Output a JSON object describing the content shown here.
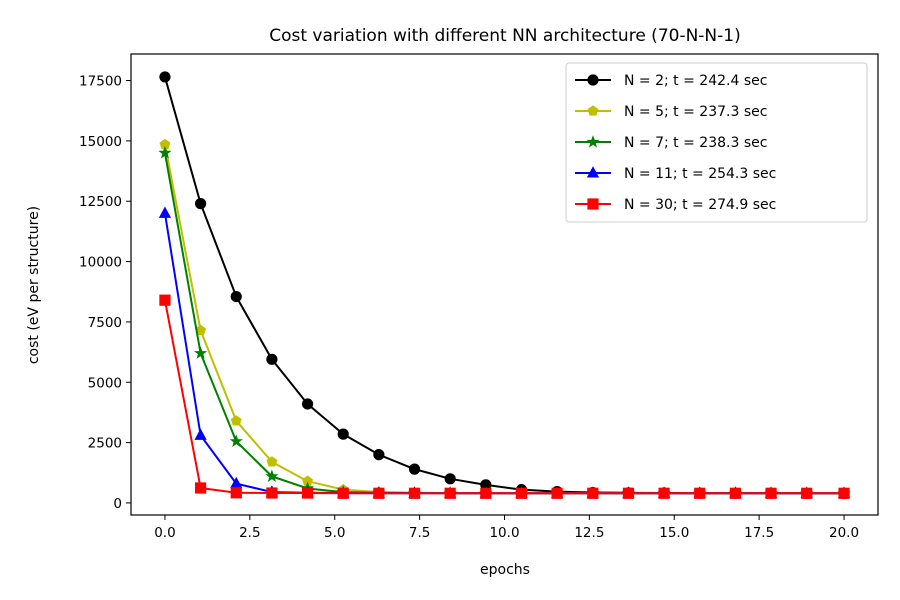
{
  "chart_data": {
    "type": "line",
    "title": "Cost variation with different NN architecture (70-N-N-1)",
    "xlabel": "epochs",
    "ylabel": "cost (eV per structure)",
    "xlim": [
      -1.0,
      21.0
    ],
    "ylim": [
      -500,
      18600
    ],
    "xticks": [
      0.0,
      2.5,
      5.0,
      7.5,
      10.0,
      12.5,
      15.0,
      17.5,
      20.0
    ],
    "xtick_labels": [
      "0.0",
      "2.5",
      "5.0",
      "7.5",
      "10.0",
      "12.5",
      "15.0",
      "17.5",
      "20.0"
    ],
    "yticks": [
      0,
      2500,
      5000,
      7500,
      10000,
      12500,
      15000,
      17500
    ],
    "ytick_labels": [
      "0",
      "2500",
      "5000",
      "7500",
      "10000",
      "12500",
      "15000",
      "17500"
    ],
    "grid": false,
    "legend_position": "top-right",
    "x": [
      0.0,
      1.05,
      2.1,
      3.15,
      4.2,
      5.25,
      6.3,
      7.35,
      8.4,
      9.45,
      10.5,
      11.55,
      12.6,
      13.65,
      14.7,
      15.75,
      16.8,
      17.85,
      18.9,
      20.0
    ],
    "series": [
      {
        "name": "N = 2; t = 242.4 sec",
        "color": "#000000",
        "marker": "circle",
        "values": [
          17650,
          12400,
          8550,
          5950,
          4100,
          2850,
          2000,
          1400,
          1000,
          750,
          550,
          470,
          430,
          420,
          410,
          400,
          400,
          400,
          390,
          390
        ]
      },
      {
        "name": "N = 5; t = 237.3 sec",
        "color": "#bfbf00",
        "marker": "pentagon",
        "values": [
          14850,
          7150,
          3400,
          1700,
          900,
          550,
          450,
          420,
          410,
          400,
          400,
          400,
          400,
          400,
          400,
          400,
          400,
          400,
          400,
          400
        ]
      },
      {
        "name": "N = 7; t = 238.3 sec",
        "color": "#008000",
        "marker": "star",
        "values": [
          14500,
          6200,
          2550,
          1100,
          600,
          450,
          420,
          410,
          400,
          400,
          400,
          400,
          400,
          400,
          400,
          400,
          400,
          400,
          400,
          400
        ]
      },
      {
        "name": "N = 11; t = 254.3 sec",
        "color": "#0000ff",
        "marker": "triangle",
        "values": [
          12000,
          2800,
          800,
          450,
          420,
          410,
          400,
          400,
          400,
          400,
          400,
          400,
          400,
          400,
          400,
          400,
          400,
          400,
          400,
          400
        ]
      },
      {
        "name": "N = 30; t = 274.9 sec",
        "color": "#ff0000",
        "marker": "square",
        "values": [
          8400,
          620,
          420,
          410,
          410,
          400,
          400,
          400,
          400,
          400,
          400,
          400,
          400,
          400,
          400,
          400,
          400,
          400,
          400,
          400
        ]
      }
    ]
  }
}
